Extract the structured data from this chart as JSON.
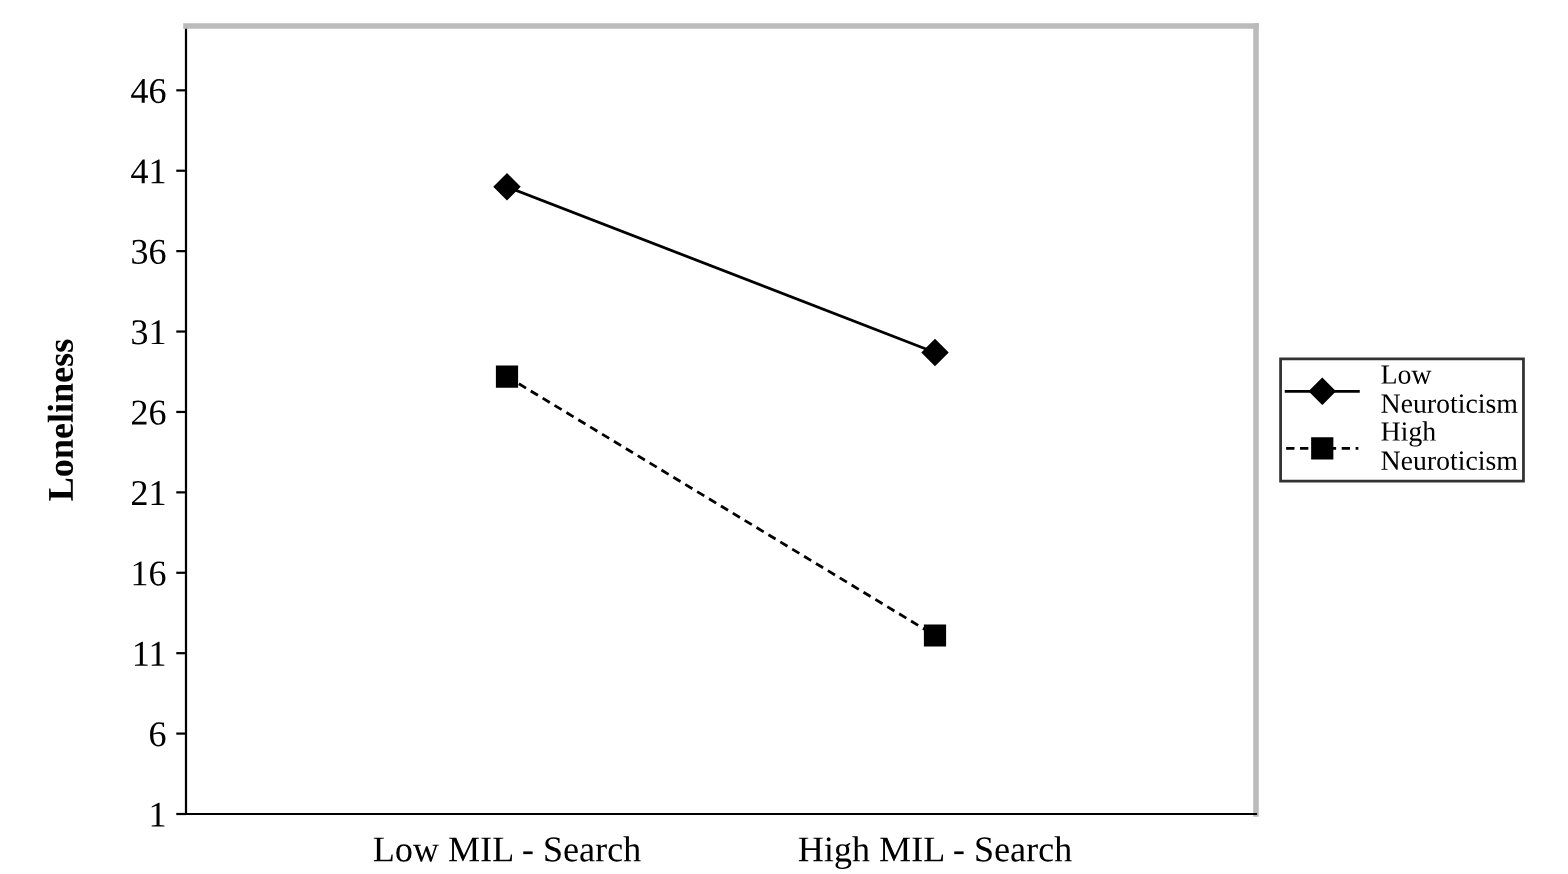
{
  "chart_data": {
    "type": "line",
    "ylabel": "Loneliness",
    "categories": [
      "Low MIL - Search",
      "High MIL - Search"
    ],
    "series": [
      {
        "name": "Low Neuroticism",
        "color": "#000000",
        "values": [
          40.0,
          29.7
        ],
        "marker": "diamond",
        "line_style": "solid"
      },
      {
        "name": "High Neuroticism",
        "color": "#000000",
        "values": [
          28.2,
          12.1
        ],
        "marker": "square",
        "line_style": "dashed"
      }
    ],
    "ylim": [
      1,
      50
    ],
    "yticks": [
      1,
      6,
      11,
      16,
      21,
      26,
      31,
      36,
      41,
      46
    ],
    "grid": false,
    "legend": "right"
  }
}
